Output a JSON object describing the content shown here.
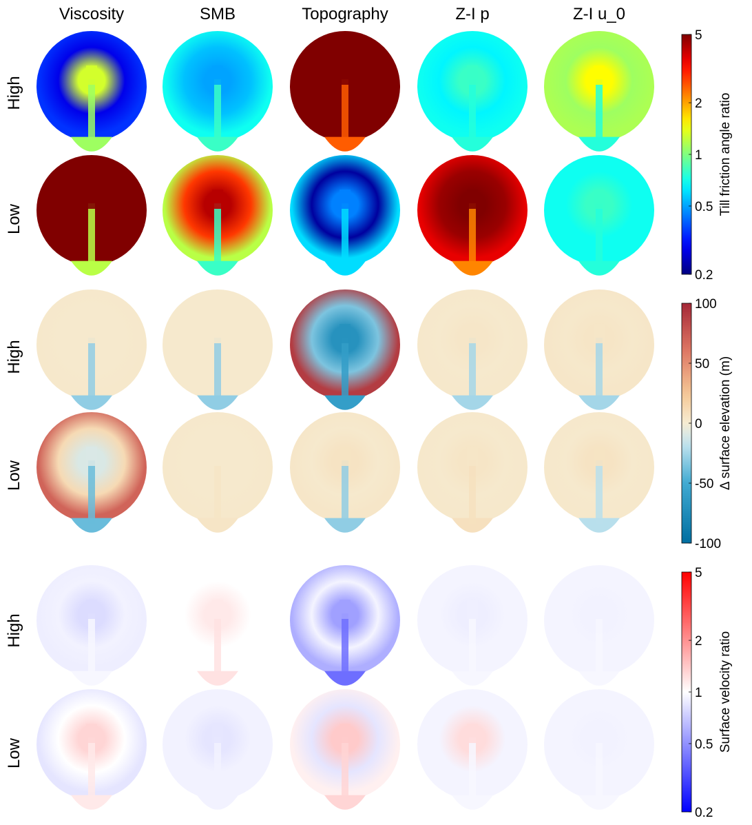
{
  "column_titles": [
    "Viscosity",
    "SMB",
    "Topography",
    "Z-I p",
    "Z-I u_0"
  ],
  "row_labels": [
    "High",
    "Low"
  ],
  "chart_data": [
    {
      "type": "heatmap",
      "description_scale": "log",
      "colormap": "jet",
      "colorbar_label": "Till friction angle ratio",
      "range": [
        0.2,
        5
      ],
      "ticks": [
        0.2,
        0.5,
        1,
        2,
        5
      ],
      "tick_labels": [
        "0.2",
        "0.5",
        "1",
        "2",
        "5"
      ],
      "rows": [
        "High",
        "Low"
      ],
      "columns": [
        "Viscosity",
        "SMB",
        "Topography",
        "Z-I p",
        "Z-I u_0"
      ],
      "panels": [
        [
          {
            "edge": 0.35,
            "ring": 0.28,
            "center": 1.3,
            "stream": 1.1
          },
          {
            "edge": 0.7,
            "ring": 0.55,
            "center": 0.5,
            "stream": 0.8
          },
          {
            "edge": 5,
            "ring": 5,
            "center": 5,
            "stream": 2.5
          },
          {
            "edge": 0.7,
            "ring": 0.65,
            "center": 0.8,
            "stream": 0.75
          },
          {
            "edge": 1.15,
            "ring": 1.1,
            "center": 1.5,
            "stream": 0.75
          }
        ],
        [
          {
            "edge": 5,
            "ring": 5,
            "center": 5,
            "stream": 1.2
          },
          {
            "edge": 1.2,
            "ring": 2.8,
            "center": 4.2,
            "stream": 0.8
          },
          {
            "edge": 0.6,
            "ring": 0.22,
            "center": 0.45,
            "stream": 0.6
          },
          {
            "edge": 3.6,
            "ring": 4.6,
            "center": 5,
            "stream": 2.2
          },
          {
            "edge": 0.7,
            "ring": 0.7,
            "center": 0.8,
            "stream": 0.75
          }
        ]
      ]
    },
    {
      "type": "heatmap",
      "colormap": "diverging red-blue",
      "colorbar_label": "Δ surface elevation (m)",
      "range": [
        -100,
        100
      ],
      "ticks": [
        -100,
        -50,
        0,
        50,
        100
      ],
      "tick_labels": [
        "-100",
        "-50",
        "0",
        "50",
        "100"
      ],
      "rows": [
        "High",
        "Low"
      ],
      "columns": [
        "Viscosity",
        "SMB",
        "Topography",
        "Z-I p",
        "Z-I u_0"
      ],
      "panels": [
        [
          {
            "edge": 3,
            "ring": 2,
            "center": 2,
            "stream": -30
          },
          {
            "edge": 2,
            "ring": 2,
            "center": 2,
            "stream": -30
          },
          {
            "edge": 90,
            "ring": -35,
            "center": -70,
            "stream": -60
          },
          {
            "edge": 3,
            "ring": 2,
            "center": 4,
            "stream": -25
          },
          {
            "edge": 4,
            "ring": 3,
            "center": 5,
            "stream": -25
          }
        ],
        [
          {
            "edge": 70,
            "ring": 12,
            "center": -10,
            "stream": -40
          },
          {
            "edge": 3,
            "ring": 2,
            "center": 2,
            "stream": 5
          },
          {
            "edge": 4,
            "ring": 2,
            "center": 6,
            "stream": -30
          },
          {
            "edge": 3,
            "ring": 2,
            "center": 5,
            "stream": 8
          },
          {
            "edge": 3,
            "ring": 2,
            "center": 6,
            "stream": -20
          }
        ]
      ]
    },
    {
      "type": "heatmap",
      "description_scale": "log",
      "colormap": "blue-white-red",
      "colorbar_label": "Surface velocity ratio",
      "range": [
        0.2,
        5
      ],
      "ticks": [
        0.2,
        0.5,
        1,
        2,
        5
      ],
      "tick_labels": [
        "0.2",
        "0.5",
        "1",
        "2",
        "5"
      ],
      "rows": [
        "High",
        "Low"
      ],
      "columns": [
        "Viscosity",
        "SMB",
        "Topography",
        "Z-I p",
        "Z-I u_0"
      ],
      "panels": [
        [
          {
            "edge": 0.9,
            "ring": 0.92,
            "center": 0.8,
            "stream": 0.95
          },
          {
            "edge": 1,
            "ring": 1,
            "center": 1.15,
            "stream": 1.2
          },
          {
            "edge": 0.6,
            "ring": 0.93,
            "center": 0.55,
            "stream": 0.4
          },
          {
            "edge": 0.93,
            "ring": 0.93,
            "center": 0.9,
            "stream": 0.95
          },
          {
            "edge": 0.93,
            "ring": 0.93,
            "center": 0.92,
            "stream": 0.95
          }
        ],
        [
          {
            "edge": 0.85,
            "ring": 1,
            "center": 1.3,
            "stream": 1.15
          },
          {
            "edge": 0.92,
            "ring": 0.92,
            "center": 0.85,
            "stream": 0.92
          },
          {
            "edge": 1.1,
            "ring": 0.85,
            "center": 1.4,
            "stream": 1.3
          },
          {
            "edge": 0.93,
            "ring": 0.93,
            "center": 1.25,
            "stream": 0.95
          },
          {
            "edge": 0.93,
            "ring": 0.93,
            "center": 0.92,
            "stream": 0.95
          }
        ]
      ]
    }
  ]
}
